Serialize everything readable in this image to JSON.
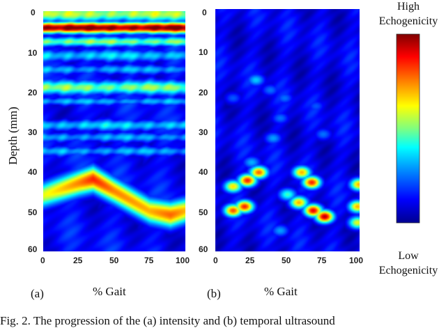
{
  "figure": {
    "y_axis_label": "Depth (mm)",
    "y_ticks": [
      "0",
      "10",
      "20",
      "30",
      "40",
      "50",
      "60"
    ],
    "x_ticks": [
      "0",
      "25",
      "50",
      "75",
      "100"
    ],
    "x_axis_label": "% Gait",
    "panel_a_label": "(a)",
    "panel_b_label": "(b)",
    "colorbar_high_line1": "High",
    "colorbar_high_line2": "Echogenicity",
    "colorbar_low_line1": "Low",
    "colorbar_low_line2": "Echogenicity",
    "colormap": [
      "#00008f",
      "#0000ff",
      "#00a0ff",
      "#00ffff",
      "#7fff7f",
      "#ffff00",
      "#ff8000",
      "#ff0000",
      "#800000"
    ],
    "caption": "Fig. 2. The progression of the (a) intensity and (b) temporal ultrasound"
  },
  "chart_data": [
    {
      "type": "heatmap",
      "panel": "(a)",
      "xlabel": "% Gait",
      "ylabel": "Depth (mm)",
      "xlim": [
        0,
        100
      ],
      "ylim": [
        60,
        0
      ],
      "x_ticks": [
        0,
        25,
        50,
        75,
        100
      ],
      "y_ticks": [
        0,
        10,
        20,
        30,
        40,
        50,
        60
      ],
      "bands": [
        {
          "depth": 0.5,
          "level": 0.55,
          "width": 2.0
        },
        {
          "depth": 4.0,
          "level": 1.0,
          "width": 1.4
        },
        {
          "depth": 7.5,
          "level": 0.5,
          "width": 1.2
        },
        {
          "depth": 11.0,
          "level": 0.35,
          "width": 1.5
        },
        {
          "depth": 14.5,
          "level": 0.3,
          "width": 1.2
        },
        {
          "depth": 19.0,
          "level": 0.5,
          "width": 1.8
        },
        {
          "depth": 22.5,
          "level": 0.3,
          "width": 1.0
        },
        {
          "depth": 28.5,
          "level": 0.35,
          "width": 1.4
        },
        {
          "depth": 31.5,
          "level": 0.3,
          "width": 1.2
        },
        {
          "depth": 35.0,
          "level": 0.3,
          "width": 1.2
        }
      ],
      "moving_band": {
        "label": "bright band with gait",
        "gait": [
          0,
          25,
          35,
          50,
          75,
          90,
          100
        ],
        "depth": [
          46,
          43,
          42,
          45,
          50,
          51,
          50
        ],
        "level": [
          0.6,
          0.75,
          0.85,
          0.75,
          0.7,
          0.78,
          0.7
        ]
      },
      "background_level": 0.12
    },
    {
      "type": "heatmap",
      "panel": "(b)",
      "xlabel": "% Gait",
      "ylabel": "Depth (mm)",
      "xlim": [
        0,
        100
      ],
      "ylim": [
        60,
        0
      ],
      "x_ticks": [
        0,
        25,
        50,
        75,
        100
      ],
      "y_ticks": [
        0,
        10,
        20,
        30,
        40,
        50,
        60
      ],
      "blobs": [
        {
          "gait": 28,
          "depth": 17.5,
          "level": 0.35
        },
        {
          "gait": 38,
          "depth": 20.0,
          "level": 0.25
        },
        {
          "gait": 48,
          "depth": 22.0,
          "level": 0.25
        },
        {
          "gait": 12,
          "depth": 22.0,
          "level": 0.22
        },
        {
          "gait": 45,
          "depth": 27.0,
          "level": 0.25
        },
        {
          "gait": 70,
          "depth": 24.0,
          "level": 0.22
        },
        {
          "gait": 40,
          "depth": 32.0,
          "level": 0.3
        },
        {
          "gait": 75,
          "depth": 31.0,
          "level": 0.25
        },
        {
          "gait": 25,
          "depth": 38.0,
          "level": 0.32
        },
        {
          "gait": 30,
          "depth": 40.5,
          "level": 0.78
        },
        {
          "gait": 60,
          "depth": 40.5,
          "level": 0.7
        },
        {
          "gait": 22,
          "depth": 42.5,
          "level": 0.85
        },
        {
          "gait": 67,
          "depth": 43.0,
          "level": 0.85
        },
        {
          "gait": 12,
          "depth": 44.0,
          "level": 0.65
        },
        {
          "gait": 100,
          "depth": 43.5,
          "level": 0.7
        },
        {
          "gait": 50,
          "depth": 46.0,
          "level": 0.45
        },
        {
          "gait": 20,
          "depth": 49.0,
          "level": 0.85
        },
        {
          "gait": 12,
          "depth": 50.0,
          "level": 0.8
        },
        {
          "gait": 58,
          "depth": 48.0,
          "level": 0.7
        },
        {
          "gait": 68,
          "depth": 50.0,
          "level": 0.9
        },
        {
          "gait": 76,
          "depth": 51.5,
          "level": 0.95
        },
        {
          "gait": 99,
          "depth": 49.0,
          "level": 0.7
        },
        {
          "gait": 99,
          "depth": 53.0,
          "level": 0.6
        },
        {
          "gait": 45,
          "depth": 55.0,
          "level": 0.3
        }
      ],
      "background_level": 0.1
    }
  ]
}
